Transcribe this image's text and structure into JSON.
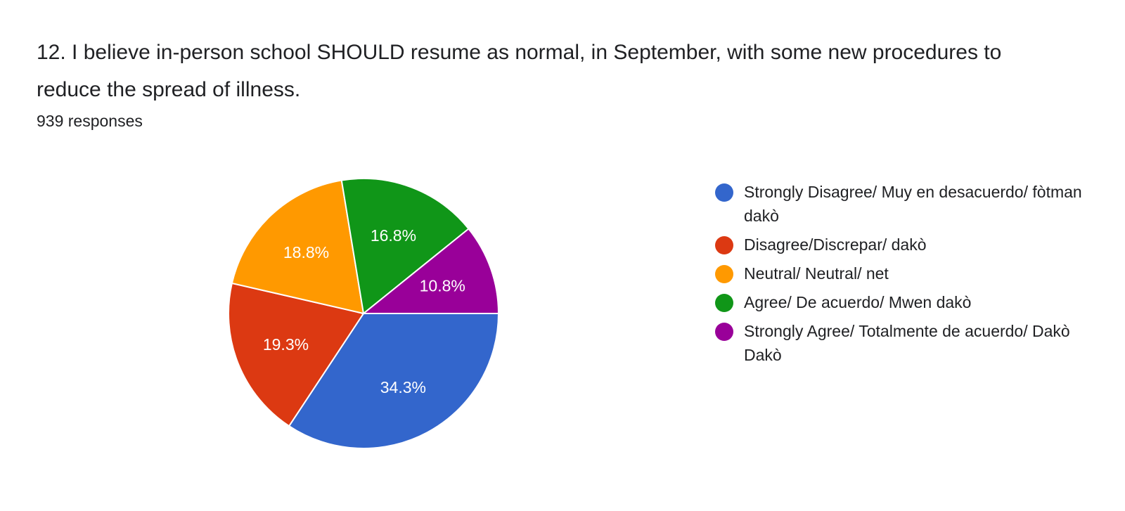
{
  "question": {
    "title": "12. I believe in-person school SHOULD resume as normal, in September, with some new procedures to reduce the spread of illness.",
    "response_count": "939 responses"
  },
  "chart_data": {
    "type": "pie",
    "start_angle_deg": 90,
    "direction": "clockwise",
    "slices": [
      {
        "label": "Strongly Disagree/ Muy en desacuerdo/ fòtman dakò",
        "value": 34.3,
        "display": "34.3%",
        "color": "#3366cc"
      },
      {
        "label": "Disagree/Discrepar/ dakò",
        "value": 19.3,
        "display": "19.3%",
        "color": "#dc3912"
      },
      {
        "label": "Neutral/ Neutral/ net",
        "value": 18.8,
        "display": "18.8%",
        "color": "#ff9900"
      },
      {
        "label": "Agree/ De acuerdo/ Mwen dakò",
        "value": 16.8,
        "display": "16.8%",
        "color": "#109618"
      },
      {
        "label": "Strongly Agree/ Totalmente de acuerdo/ Dakò Dakò",
        "value": 10.8,
        "display": "10.8%",
        "color": "#990099"
      }
    ],
    "legend_position": "right"
  }
}
